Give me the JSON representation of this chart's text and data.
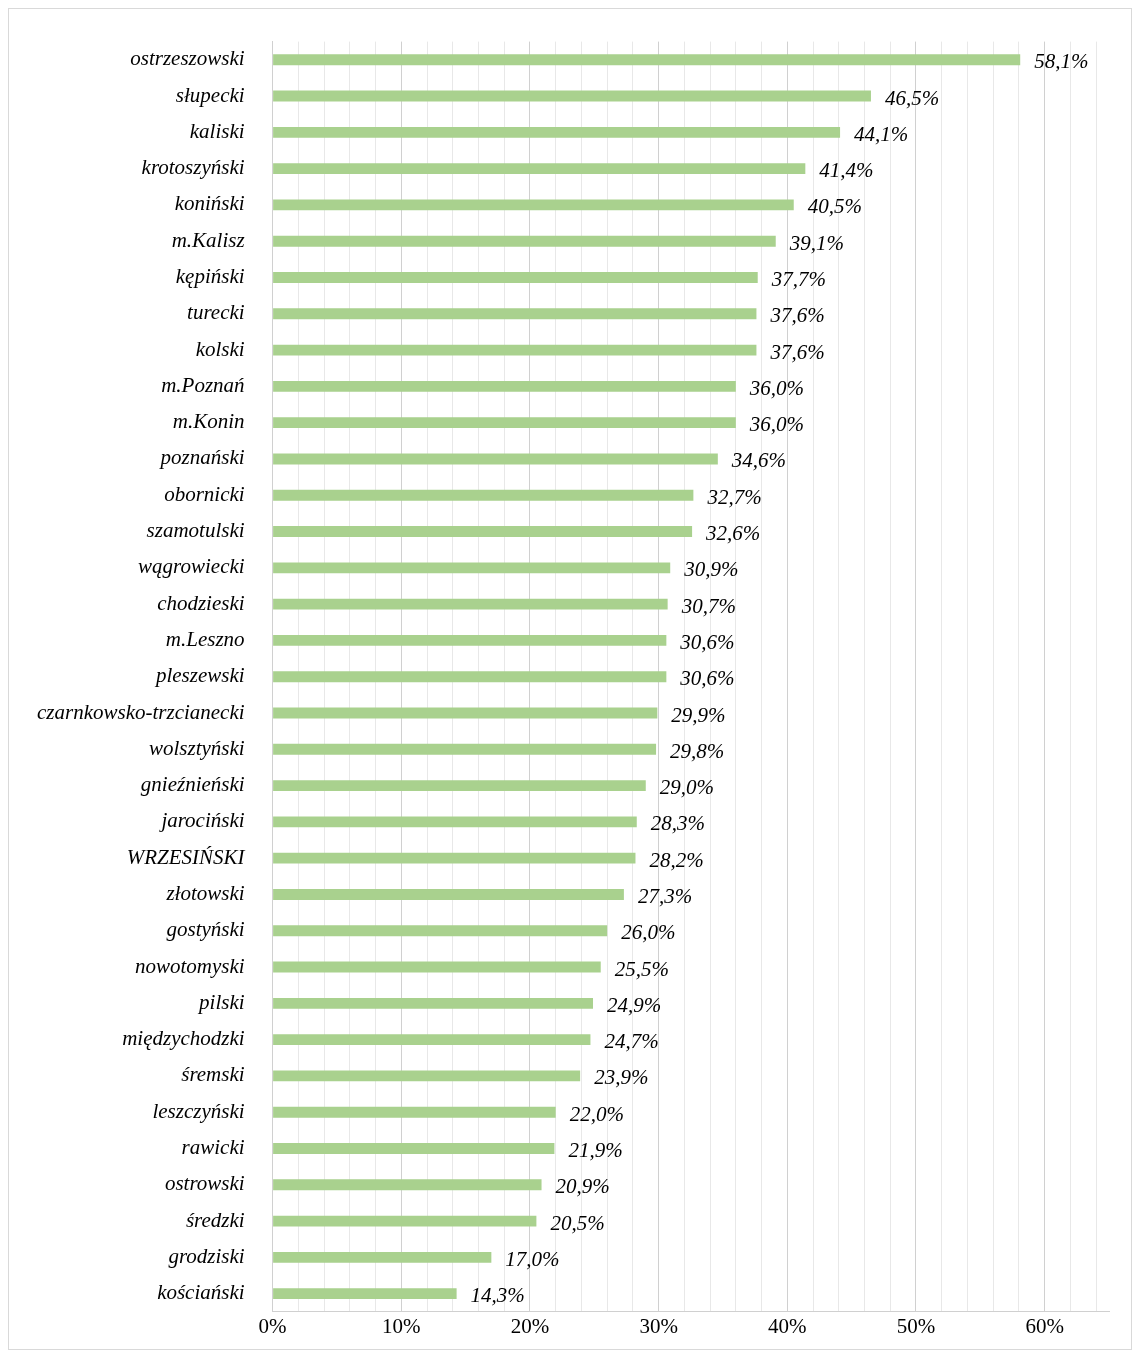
{
  "chart_data": {
    "type": "bar",
    "orientation": "horizontal",
    "categories": [
      "ostrzeszowski",
      "słupecki",
      "kaliski",
      "krotoszyński",
      "koniński",
      "m.Kalisz",
      "kępiński",
      "turecki",
      "kolski",
      "m.Poznań",
      "m.Konin",
      "poznański",
      "obornicki",
      "szamotulski",
      "wągrowiecki",
      "chodzieski",
      "m.Leszno",
      "pleszewski",
      "czarnkowsko-trzcianecki",
      "wolsztyński",
      "gnieźnieński",
      "jarociński",
      "WRZESIŃSKI",
      "złotowski",
      "gostyński",
      "nowotomyski",
      "pilski",
      "międzychodzki",
      "śremski",
      "leszczyński",
      "rawicki",
      "ostrowski",
      "średzki",
      "grodziski",
      "kościański"
    ],
    "values": [
      58.1,
      46.5,
      44.1,
      41.4,
      40.5,
      39.1,
      37.7,
      37.6,
      37.6,
      36.0,
      36.0,
      34.6,
      32.7,
      32.6,
      30.9,
      30.7,
      30.6,
      30.6,
      29.9,
      29.8,
      29.0,
      28.3,
      28.2,
      27.3,
      26.0,
      25.5,
      24.9,
      24.7,
      23.9,
      22.0,
      21.9,
      20.9,
      20.5,
      17.0,
      14.3
    ],
    "value_labels": [
      "58,1%",
      "46,5%",
      "44,1%",
      "41,4%",
      "40,5%",
      "39,1%",
      "37,7%",
      "37,6%",
      "37,6%",
      "36,0%",
      "36,0%",
      "34,6%",
      "32,7%",
      "32,6%",
      "30,9%",
      "30,7%",
      "30,6%",
      "30,6%",
      "29,9%",
      "29,8%",
      "29,0%",
      "28,3%",
      "28,2%",
      "27,3%",
      "26,0%",
      "25,5%",
      "24,9%",
      "24,7%",
      "23,9%",
      "22,0%",
      "21,9%",
      "20,9%",
      "20,5%",
      "17,0%",
      "14,3%"
    ],
    "color": "#a9d18e",
    "xlim": [
      0,
      65
    ],
    "xticks": [
      {
        "value": 0,
        "label": "0%"
      },
      {
        "value": 2,
        "label": null
      },
      {
        "value": 4,
        "label": null
      },
      {
        "value": 6,
        "label": null
      },
      {
        "value": 8,
        "label": null
      },
      {
        "value": 10,
        "label": "10%"
      },
      {
        "value": 12,
        "label": null
      },
      {
        "value": 14,
        "label": null
      },
      {
        "value": 16,
        "label": null
      },
      {
        "value": 18,
        "label": null
      },
      {
        "value": 20,
        "label": "20%"
      },
      {
        "value": 22,
        "label": null
      },
      {
        "value": 24,
        "label": null
      },
      {
        "value": 26,
        "label": null
      },
      {
        "value": 28,
        "label": null
      },
      {
        "value": 30,
        "label": "30%"
      },
      {
        "value": 32,
        "label": null
      },
      {
        "value": 34,
        "label": null
      },
      {
        "value": 36,
        "label": null
      },
      {
        "value": 38,
        "label": null
      },
      {
        "value": 40,
        "label": "40%"
      },
      {
        "value": 42,
        "label": null
      },
      {
        "value": 44,
        "label": null
      },
      {
        "value": 46,
        "label": null
      },
      {
        "value": 48,
        "label": null
      },
      {
        "value": 50,
        "label": "50%"
      },
      {
        "value": 52,
        "label": null
      },
      {
        "value": 54,
        "label": null
      },
      {
        "value": 56,
        "label": null
      },
      {
        "value": 58,
        "label": null
      },
      {
        "value": 60,
        "label": "60%"
      },
      {
        "value": 62,
        "label": null
      },
      {
        "value": 64,
        "label": null
      }
    ],
    "grid": "x"
  }
}
